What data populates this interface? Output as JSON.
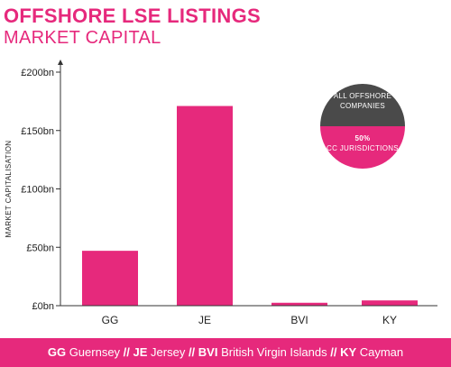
{
  "title": "OFFSHORE LSE LISTINGS",
  "subtitle": "MARKET CAPITAL",
  "chart_data": {
    "type": "bar",
    "categories": [
      "GG",
      "JE",
      "BVI",
      "KY"
    ],
    "values": [
      47,
      171,
      2.5,
      4.5
    ],
    "ylabel": "MARKET CAPITALISATION",
    "ylim": [
      0,
      200
    ],
    "yticks": [
      0,
      50,
      100,
      150,
      200
    ],
    "ytick_labels": [
      "£0bn",
      "£50bn",
      "£100bn",
      "£150bn",
      "£200bn"
    ],
    "grid": false,
    "bar_color": "#e6297c"
  },
  "inset": {
    "type": "pie",
    "top_label_line1": "ALL OFFSHORE",
    "top_label_line2": "COMPANIES",
    "percent_label": "50%",
    "bottom_label": "CC JURISDICTIONS",
    "value_percent": 50,
    "top_color": "#4a4a4a",
    "bottom_color": "#e6297c"
  },
  "footer": {
    "items": [
      {
        "code": "GG",
        "name": "Guernsey"
      },
      {
        "code": "JE",
        "name": "Jersey"
      },
      {
        "code": "BVI",
        "name": "British Virgin Islands"
      },
      {
        "code": "KY",
        "name": "Cayman"
      }
    ],
    "separator": "//"
  },
  "colors": {
    "accent": "#e6297c",
    "axis": "#333333",
    "dark": "#4a4a4a"
  }
}
